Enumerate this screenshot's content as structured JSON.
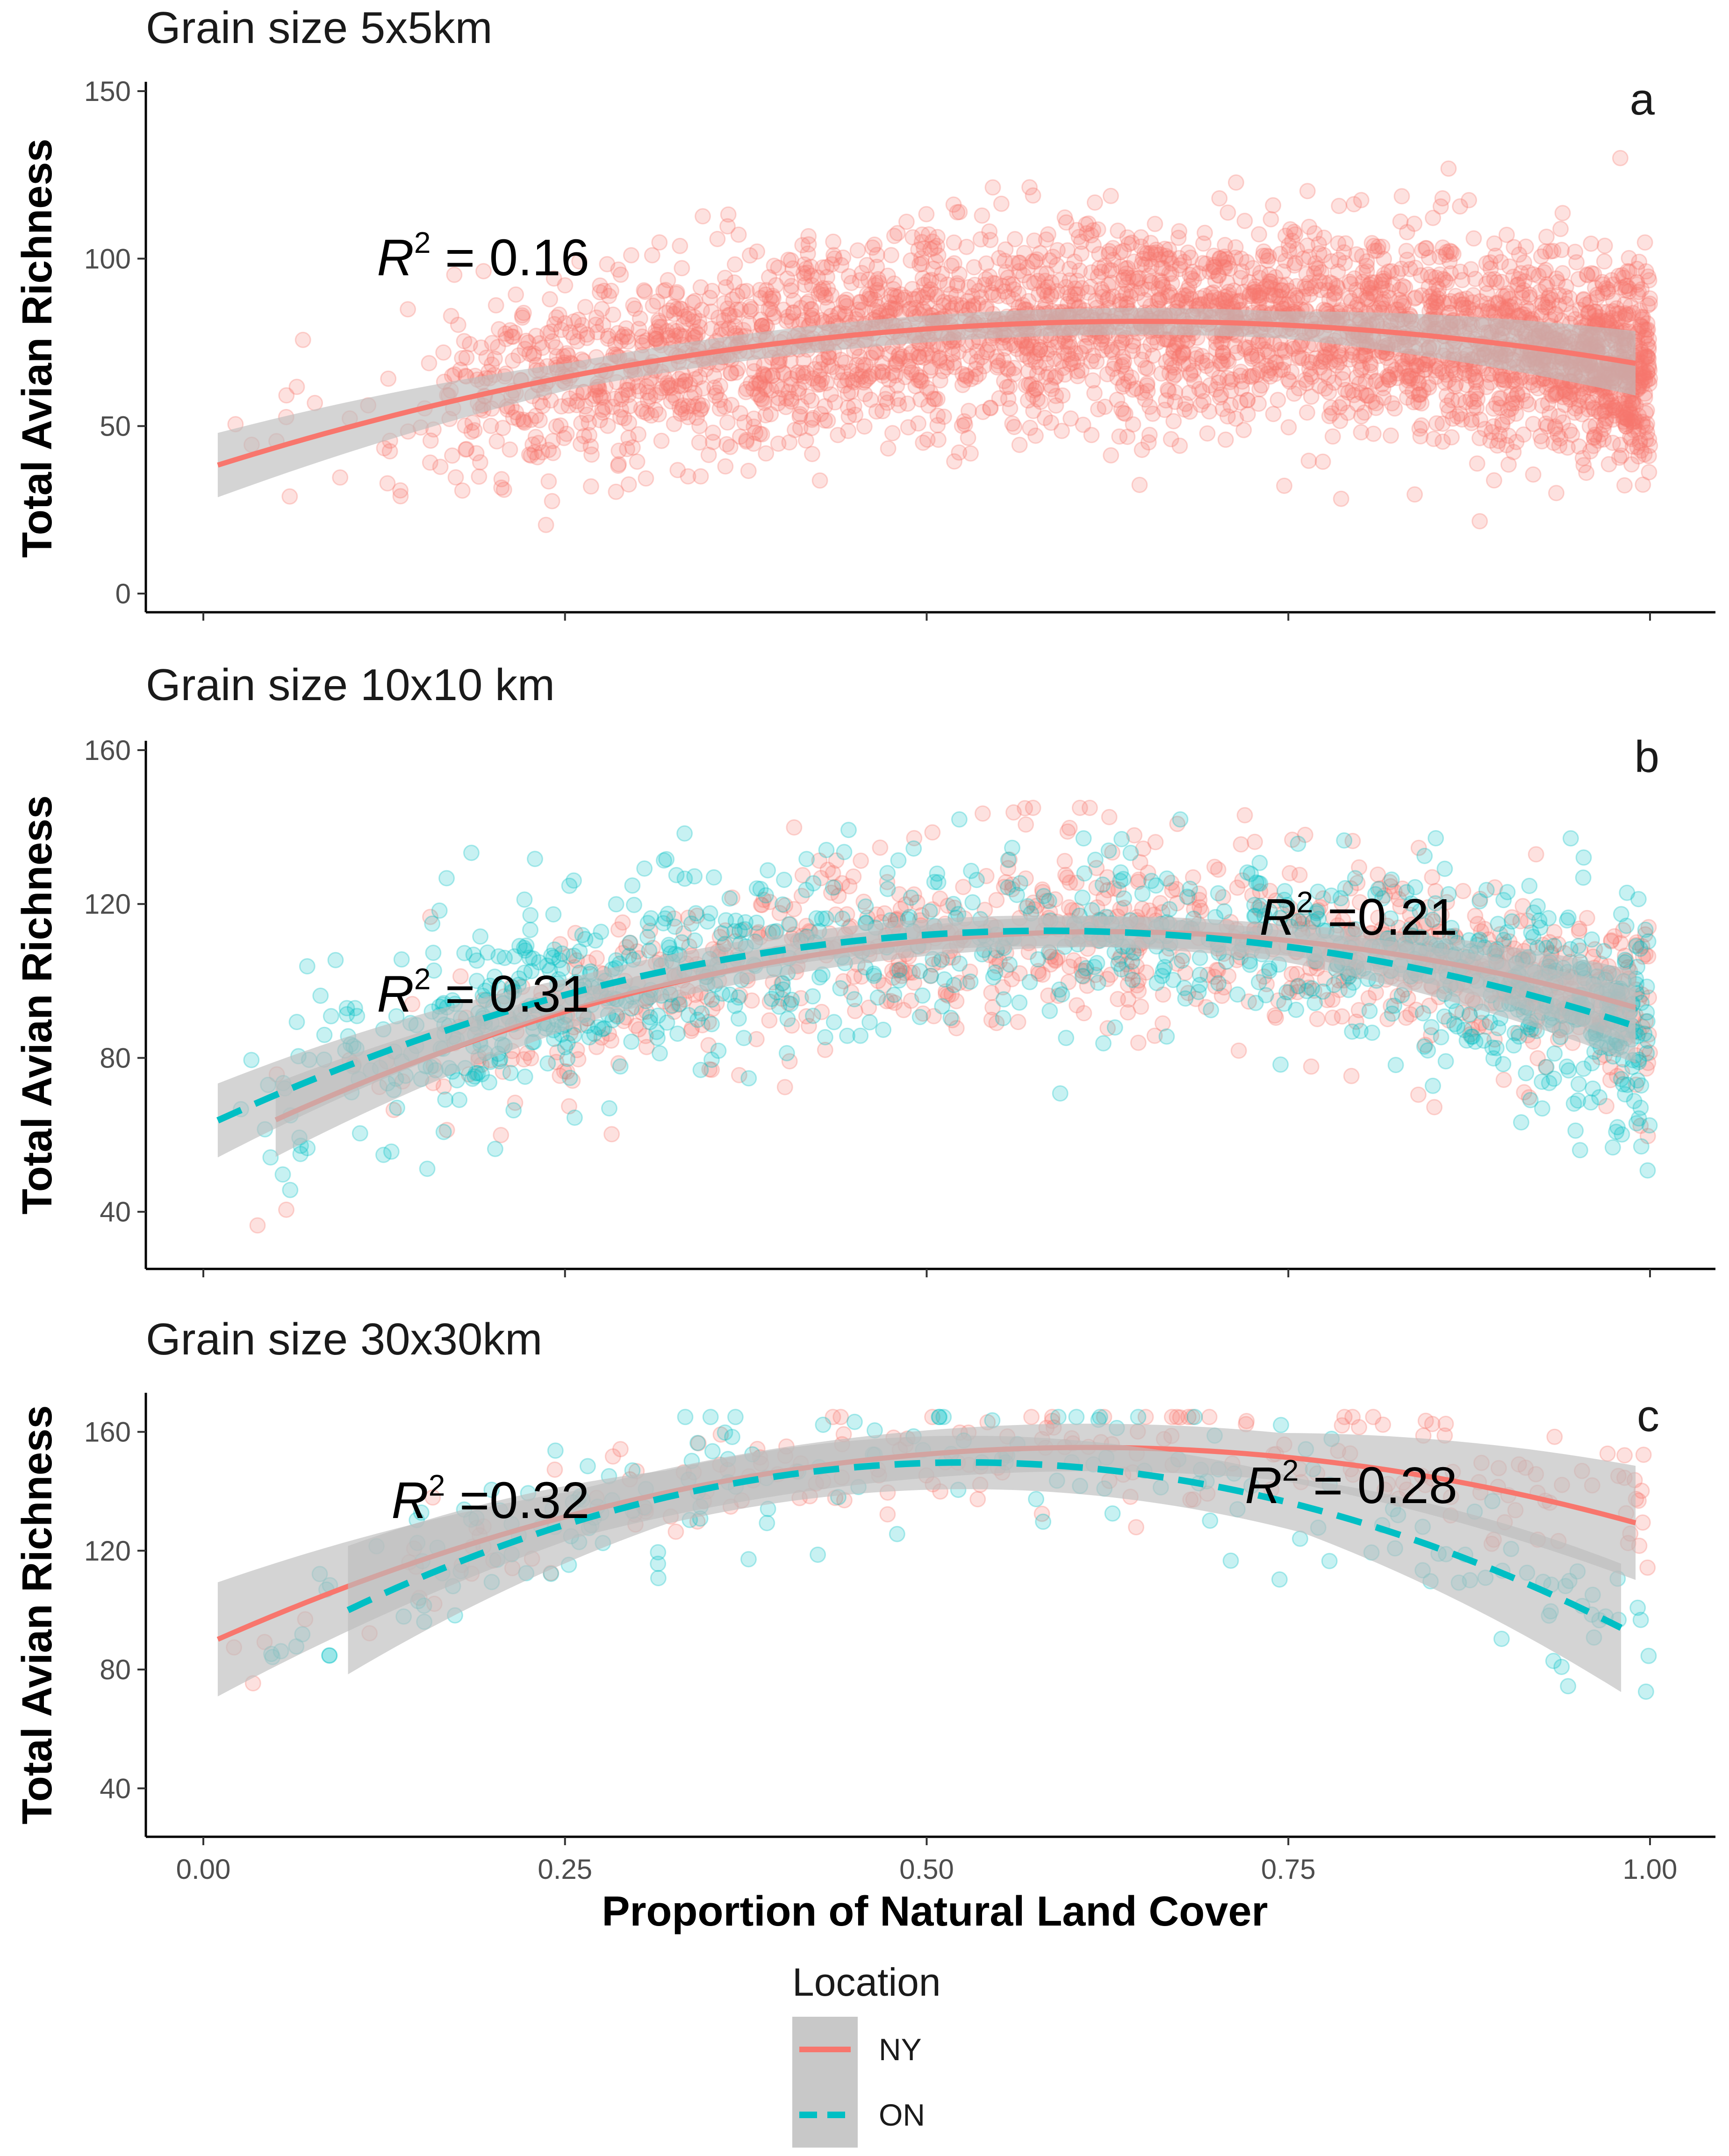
{
  "colors": {
    "NY": "#F8766D",
    "ON": "#00BFC4",
    "band": "#BDBDBD",
    "axis": "#000000"
  },
  "legend": {
    "title": "Location",
    "items": [
      {
        "key": "NY",
        "label": "NY",
        "style": "solid"
      },
      {
        "key": "ON",
        "label": "ON",
        "style": "dashed"
      }
    ]
  },
  "chart_data": [
    {
      "type": "scatter",
      "panel": "a",
      "title": "Grain size 5x5km",
      "xlabel": "",
      "ylabel": "Total Avian Richness",
      "xlim": [
        0,
        1
      ],
      "ylim": [
        0,
        150
      ],
      "xticks": [
        0,
        0.25,
        0.5,
        0.75,
        1
      ],
      "xtick_labels": [],
      "yticks": [
        0,
        50,
        100,
        150
      ],
      "ytick_labels": [
        "0",
        "50",
        "100",
        "150"
      ],
      "annotations": [
        {
          "text_main": "R",
          "text_sup": "2",
          "text_rest": " = 0.16",
          "x": 0.12,
          "y": 95
        }
      ],
      "series": [
        {
          "name": "NY",
          "fit": {
            "a": 37,
            "b": 137,
            "c": -106
          },
          "fit_range": [
            0.01,
            0.99
          ],
          "band_width": 4,
          "points": {
            "count": 3400,
            "seed": 11,
            "noise": 15,
            "min_y": 2,
            "max_y": 130,
            "density": [
              [
                0,
                0.005
              ],
              [
                0.12,
                0.02
              ],
              [
                0.22,
                0.35
              ],
              [
                0.4,
                0.55
              ],
              [
                0.6,
                0.65
              ],
              [
                0.85,
                0.7
              ],
              [
                0.95,
                1.0
              ],
              [
                1.0,
                1.6
              ]
            ]
          }
        }
      ]
    },
    {
      "type": "scatter",
      "panel": "b",
      "title": "Grain size 10x10 km",
      "xlabel": "",
      "ylabel": "Total Avian Richness",
      "xlim": [
        0,
        1
      ],
      "ylim": [
        30,
        160
      ],
      "xticks": [
        0,
        0.25,
        0.5,
        0.75,
        1
      ],
      "xtick_labels": [],
      "yticks": [
        40,
        80,
        120,
        160
      ],
      "ytick_labels": [
        "40",
        "80",
        "120",
        "160"
      ],
      "annotations": [
        {
          "text_main": "R",
          "text_sup": "2",
          "text_rest": " = 0.31",
          "x": 0.12,
          "y": 92
        },
        {
          "text_main": "R",
          "text_sup": "2",
          "text_rest": " =0.21",
          "x": 0.73,
          "y": 112
        }
      ],
      "series": [
        {
          "name": "NY",
          "fit": {
            "a": 55,
            "b": 185,
            "c": -148
          },
          "fit_range": [
            0.05,
            0.99
          ],
          "band_width": 4,
          "points": {
            "count": 950,
            "seed": 23,
            "noise": 12,
            "min_y": 35,
            "max_y": 145,
            "density": [
              [
                0,
                0.01
              ],
              [
                0.15,
                0.1
              ],
              [
                0.3,
                0.45
              ],
              [
                0.6,
                0.6
              ],
              [
                0.8,
                0.65
              ],
              [
                0.95,
                0.9
              ],
              [
                1.0,
                1.2
              ]
            ]
          }
        },
        {
          "name": "ON",
          "fit": {
            "a": 62,
            "b": 175,
            "c": -150
          },
          "fit_range": [
            0.01,
            0.99
          ],
          "band_width": 4,
          "points": {
            "count": 950,
            "seed": 37,
            "noise": 13,
            "min_y": 30,
            "max_y": 142,
            "density": [
              [
                0,
                0.04
              ],
              [
                0.1,
                0.25
              ],
              [
                0.2,
                0.8
              ],
              [
                0.4,
                0.5
              ],
              [
                0.6,
                0.35
              ],
              [
                0.85,
                0.5
              ],
              [
                0.95,
                1.2
              ],
              [
                1.0,
                1.5
              ]
            ]
          }
        }
      ]
    },
    {
      "type": "scatter",
      "panel": "c",
      "title": "Grain size 30x30km",
      "xlabel": "Proportion of Natural Land Cover",
      "ylabel": "Total Avian Richness",
      "xlim": [
        0,
        1
      ],
      "ylim": [
        30,
        170
      ],
      "xticks": [
        0,
        0.25,
        0.5,
        0.75,
        1
      ],
      "xtick_labels": [
        "0.00",
        "0.25",
        "0.50",
        "0.75",
        "1.00"
      ],
      "yticks": [
        40,
        80,
        120,
        160
      ],
      "ytick_labels": [
        "40",
        "80",
        "120",
        "160"
      ],
      "annotations": [
        {
          "text_main": "R",
          "text_sup": "2",
          "text_rest": " =0.32",
          "x": 0.13,
          "y": 131
        },
        {
          "text_main": "R",
          "text_sup": "2",
          "text_rest": " = 0.28",
          "x": 0.72,
          "y": 136
        }
      ],
      "series": [
        {
          "name": "NY",
          "fit": {
            "a": 88,
            "b": 218,
            "c": -178
          },
          "fit_range": [
            0.01,
            0.99
          ],
          "band_width": 8,
          "points": {
            "count": 200,
            "seed": 51,
            "noise": 11,
            "min_y": 70,
            "max_y": 165,
            "density": [
              [
                0,
                0.05
              ],
              [
                0.2,
                0.6
              ],
              [
                0.5,
                0.8
              ],
              [
                0.8,
                0.7
              ],
              [
                1.0,
                0.8
              ]
            ]
          }
        },
        {
          "name": "ON",
          "fit": {
            "a": 74,
            "b": 287,
            "c": -272
          },
          "fit_range": [
            0.1,
            0.98
          ],
          "band_width": 9,
          "points": {
            "count": 190,
            "seed": 67,
            "noise": 13,
            "min_y": 32,
            "max_y": 165,
            "density": [
              [
                0,
                0.0
              ],
              [
                0.1,
                0.3
              ],
              [
                0.3,
                0.9
              ],
              [
                0.6,
                0.5
              ],
              [
                0.85,
                0.5
              ],
              [
                1.0,
                1.1
              ]
            ]
          }
        }
      ]
    }
  ]
}
